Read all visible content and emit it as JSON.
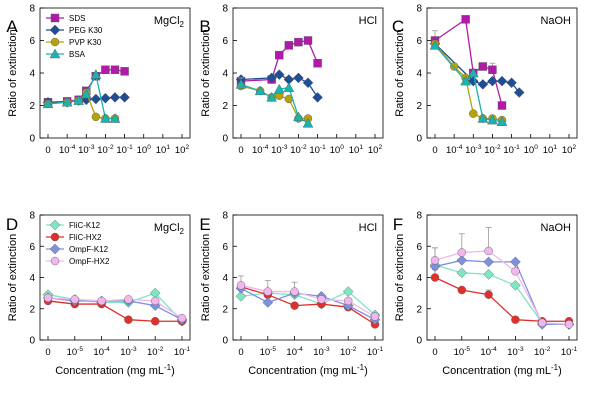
{
  "chart_data": [
    {
      "type": "line",
      "panel_letter": "A",
      "title": "MgCl2",
      "ylabel": "Ratio of extinction",
      "xlabel": "",
      "ylim": [
        0,
        8
      ],
      "yticks": [
        "0",
        "2",
        "4",
        "6",
        "8"
      ],
      "categories": [
        "0",
        "10-4",
        "10-3",
        "10-2",
        "10-1",
        "100",
        "101",
        "102"
      ],
      "legend_position": "top-left",
      "series": [
        {
          "name": "SDS",
          "color": "#b01aa8",
          "marker": "square",
          "x": [
            0,
            1,
            1.6,
            2,
            2.5,
            3,
            3.5,
            4
          ],
          "values": [
            2.2,
            2.25,
            2.35,
            2.9,
            3.8,
            4.2,
            4.2,
            4.1
          ],
          "errors": [
            0,
            0,
            0,
            0,
            0,
            0,
            0,
            0
          ]
        },
        {
          "name": "PEG K30",
          "color": "#1f4e96",
          "marker": "diamond",
          "x": [
            0,
            1,
            1.6,
            2,
            2.5,
            3,
            3.5,
            4
          ],
          "values": [
            2.2,
            2.2,
            2.3,
            2.35,
            2.4,
            2.45,
            2.5,
            2.5
          ],
          "errors": [
            0,
            0,
            0,
            0,
            0,
            0,
            0,
            0
          ]
        },
        {
          "name": "PVP K30",
          "color": "#b5a20c",
          "marker": "circle",
          "x": [
            0,
            1,
            1.6,
            2,
            2.5,
            3,
            3.5,
            4
          ],
          "values": [
            2.1,
            2.2,
            2.3,
            2.8,
            1.3,
            1.2,
            1.2,
            null
          ],
          "errors": [
            0,
            0,
            0,
            0,
            0,
            0,
            0,
            0
          ]
        },
        {
          "name": "BSA",
          "color": "#1ab3b0",
          "marker": "triangle",
          "x": [
            0,
            1,
            1.6,
            2,
            2.5,
            3,
            3.5,
            4
          ],
          "values": [
            2.1,
            2.2,
            2.3,
            2.7,
            3.9,
            1.2,
            1.2,
            null
          ],
          "errors": [
            0,
            0,
            0,
            0,
            0,
            0,
            0,
            0
          ]
        }
      ]
    },
    {
      "type": "line",
      "panel_letter": "B",
      "title": "HCl",
      "ylabel": "Ratio of extinction",
      "xlabel": "",
      "ylim": [
        0,
        8
      ],
      "yticks": [
        "0",
        "2",
        "4",
        "6",
        "8"
      ],
      "categories": [
        "0",
        "10-4",
        "10-3",
        "10-2",
        "10-1",
        "100",
        "101",
        "102"
      ],
      "series": [
        {
          "name": "SDS",
          "color": "#b01aa8",
          "marker": "square",
          "x": [
            0,
            1.6,
            2,
            2.5,
            3,
            3.5,
            4
          ],
          "values": [
            3.5,
            3.6,
            5.1,
            5.7,
            5.9,
            6.0,
            4.6
          ],
          "errors": [
            0,
            0,
            0,
            0,
            0,
            0,
            0
          ]
        },
        {
          "name": "PEG K30",
          "color": "#1f4e96",
          "marker": "diamond",
          "x": [
            0,
            1.6,
            2,
            2.5,
            3,
            3.5,
            4
          ],
          "values": [
            3.6,
            3.7,
            3.9,
            3.6,
            3.7,
            3.4,
            2.5
          ],
          "errors": [
            0,
            0,
            0,
            0,
            0,
            0,
            0
          ]
        },
        {
          "name": "PVP K30",
          "color": "#b5a20c",
          "marker": "circle",
          "x": [
            0,
            1,
            1.6,
            2,
            2.5,
            3,
            3.5
          ],
          "values": [
            3.2,
            2.9,
            2.5,
            2.6,
            2.4,
            1.2,
            1.2
          ],
          "errors": [
            0.5,
            0,
            0,
            0,
            0,
            0,
            0
          ]
        },
        {
          "name": "BSA",
          "color": "#1ab3b0",
          "marker": "triangle",
          "x": [
            0,
            1,
            1.6,
            2,
            2.5,
            3,
            3.5
          ],
          "values": [
            3.3,
            2.9,
            2.5,
            3.0,
            3.1,
            1.3,
            0.9
          ],
          "errors": [
            0,
            0,
            0,
            0,
            0,
            0,
            0
          ]
        }
      ]
    },
    {
      "type": "line",
      "panel_letter": "C",
      "title": "NaOH",
      "ylabel": "Ratio of extinction",
      "xlabel": "",
      "ylim": [
        0,
        8
      ],
      "yticks": [
        "0",
        "2",
        "4",
        "6",
        "8"
      ],
      "categories": [
        "0",
        "10-4",
        "10-3",
        "10-2",
        "10-1",
        "100",
        "101",
        "102"
      ],
      "series": [
        {
          "name": "SDS",
          "color": "#b01aa8",
          "marker": "square",
          "x": [
            0,
            1.6,
            2,
            2.5,
            3,
            3.5,
            4
          ],
          "values": [
            6.0,
            7.3,
            4.0,
            4.4,
            4.2,
            2.0,
            null
          ],
          "errors": [
            0.6,
            0,
            0,
            0,
            0.4,
            0,
            0
          ]
        },
        {
          "name": "PEG K30",
          "color": "#1f4e96",
          "marker": "diamond",
          "x": [
            0,
            2,
            2.5,
            3,
            3.5,
            4,
            4.4
          ],
          "values": [
            5.8,
            3.5,
            3.3,
            3.5,
            3.5,
            3.4,
            2.8
          ],
          "errors": [
            0,
            0,
            0,
            0,
            0,
            0,
            0
          ]
        },
        {
          "name": "PVP K30",
          "color": "#b5a20c",
          "marker": "circle",
          "x": [
            0,
            1,
            1.6,
            2,
            2.5,
            3,
            3.5
          ],
          "values": [
            5.8,
            4.4,
            3.7,
            1.5,
            1.2,
            1.2,
            1.1
          ],
          "errors": [
            0,
            0,
            0,
            0,
            0,
            0,
            0
          ]
        },
        {
          "name": "BSA",
          "color": "#1ab3b0",
          "marker": "triangle",
          "x": [
            0,
            1.6,
            2,
            2.5,
            3,
            3.5
          ],
          "values": [
            5.7,
            3.5,
            4.0,
            1.2,
            1.1,
            1.0
          ],
          "errors": [
            0,
            0,
            0,
            0,
            0,
            0
          ]
        }
      ]
    },
    {
      "type": "line",
      "panel_letter": "D",
      "title": "MgCl2",
      "ylabel": "Ratio of extinction",
      "xlabel": "Concentration (mg mL-1)",
      "ylim": [
        0,
        8
      ],
      "yticks": [
        "0",
        "2",
        "4",
        "6",
        "8"
      ],
      "categories": [
        "0",
        "10-5",
        "10-4",
        "10-3",
        "10-2",
        "10-1"
      ],
      "legend_position": "top-left",
      "series": [
        {
          "name": "FliC-K12",
          "color": "#7fe6c4",
          "marker": "diamond",
          "x": [
            0,
            1,
            2,
            3,
            4,
            5
          ],
          "values": [
            2.9,
            2.6,
            2.4,
            2.4,
            3.0,
            1.2
          ],
          "errors": [
            0,
            0,
            0,
            0,
            0,
            0
          ]
        },
        {
          "name": "FliC-HX2",
          "color": "#e0302a",
          "marker": "circle",
          "x": [
            0,
            1,
            2,
            3,
            4,
            5
          ],
          "values": [
            2.5,
            2.3,
            2.3,
            1.3,
            1.2,
            1.2
          ],
          "errors": [
            0,
            0,
            0,
            0,
            0,
            0
          ]
        },
        {
          "name": "OmpF-K12",
          "color": "#8090e0",
          "marker": "diamond",
          "x": [
            0,
            1,
            2,
            3,
            4,
            5
          ],
          "values": [
            2.7,
            2.5,
            2.5,
            2.5,
            2.2,
            1.3
          ],
          "errors": [
            0,
            0,
            0,
            0,
            0,
            0
          ]
        },
        {
          "name": "OmpF-HX2",
          "color": "#f2b6ee",
          "marker": "circle",
          "x": [
            0,
            1,
            2,
            3,
            4,
            5
          ],
          "values": [
            2.7,
            2.6,
            2.5,
            2.6,
            2.5,
            1.4
          ],
          "errors": [
            0,
            0,
            0,
            0,
            0,
            0
          ]
        }
      ]
    },
    {
      "type": "line",
      "panel_letter": "E",
      "title": "HCl",
      "ylabel": "Ratio of extinction",
      "xlabel": "Concentration (mg mL-1)",
      "ylim": [
        0,
        8
      ],
      "yticks": [
        "0",
        "2",
        "4",
        "6",
        "8"
      ],
      "categories": [
        "0",
        "10-5",
        "10-4",
        "10-3",
        "10-2",
        "10-1"
      ],
      "series": [
        {
          "name": "FliC-K12",
          "color": "#7fe6c4",
          "marker": "diamond",
          "x": [
            0,
            1,
            2,
            3,
            4,
            5
          ],
          "values": [
            2.8,
            3.0,
            2.9,
            2.3,
            3.1,
            1.6
          ],
          "errors": [
            0,
            0,
            0,
            0,
            0,
            0
          ]
        },
        {
          "name": "FliC-HX2",
          "color": "#e0302a",
          "marker": "circle",
          "x": [
            0,
            1,
            2,
            3,
            4,
            5
          ],
          "values": [
            3.4,
            2.9,
            2.2,
            2.3,
            2.1,
            1.0
          ],
          "errors": [
            0,
            0,
            0,
            0,
            0,
            0
          ]
        },
        {
          "name": "OmpF-K12",
          "color": "#8090e0",
          "marker": "diamond",
          "x": [
            0,
            1,
            2,
            3,
            4,
            5
          ],
          "values": [
            3.3,
            2.4,
            3.0,
            2.8,
            2.2,
            1.3
          ],
          "errors": [
            0,
            0,
            0,
            0,
            0,
            0
          ]
        },
        {
          "name": "OmpF-HX2",
          "color": "#f2b6ee",
          "marker": "circle",
          "x": [
            0,
            1,
            2,
            3,
            4,
            5
          ],
          "values": [
            3.5,
            3.1,
            3.1,
            2.6,
            2.5,
            1.5
          ],
          "errors": [
            0.6,
            0.7,
            0.6,
            0,
            0,
            0
          ]
        }
      ]
    },
    {
      "type": "line",
      "panel_letter": "F",
      "title": "NaOH",
      "ylabel": "Ratio of extinction",
      "xlabel": "Concentration (mg mL-1)",
      "ylim": [
        0,
        8
      ],
      "yticks": [
        "0",
        "2",
        "4",
        "6",
        "8"
      ],
      "categories": [
        "0",
        "10-5",
        "10-4",
        "10-3",
        "10-2",
        "10-1"
      ],
      "series": [
        {
          "name": "FliC-K12",
          "color": "#7fe6c4",
          "marker": "diamond",
          "x": [
            0,
            1,
            2,
            3,
            4,
            5
          ],
          "values": [
            4.8,
            4.3,
            4.2,
            3.5,
            1.1,
            1.0
          ],
          "errors": [
            0,
            0,
            0,
            0,
            0,
            0
          ]
        },
        {
          "name": "FliC-HX2",
          "color": "#e0302a",
          "marker": "circle",
          "x": [
            0,
            1,
            2,
            3,
            4,
            5
          ],
          "values": [
            4.0,
            3.2,
            2.9,
            1.3,
            1.2,
            1.2
          ],
          "errors": [
            0.5,
            0,
            0.3,
            0,
            0,
            0
          ]
        },
        {
          "name": "OmpF-K12",
          "color": "#8090e0",
          "marker": "diamond",
          "x": [
            0,
            1,
            2,
            3,
            4,
            5
          ],
          "values": [
            4.7,
            5.1,
            5.0,
            5.0,
            1.0,
            1.0
          ],
          "errors": [
            1.2,
            0,
            0,
            0,
            0,
            0
          ]
        },
        {
          "name": "OmpF-HX2",
          "color": "#f2b6ee",
          "marker": "circle",
          "x": [
            0,
            1,
            2,
            3,
            4,
            5
          ],
          "values": [
            5.1,
            5.6,
            5.7,
            4.4,
            1.1,
            1.0
          ],
          "errors": [
            0.8,
            1.2,
            1.5,
            0,
            0,
            0
          ]
        }
      ]
    }
  ]
}
